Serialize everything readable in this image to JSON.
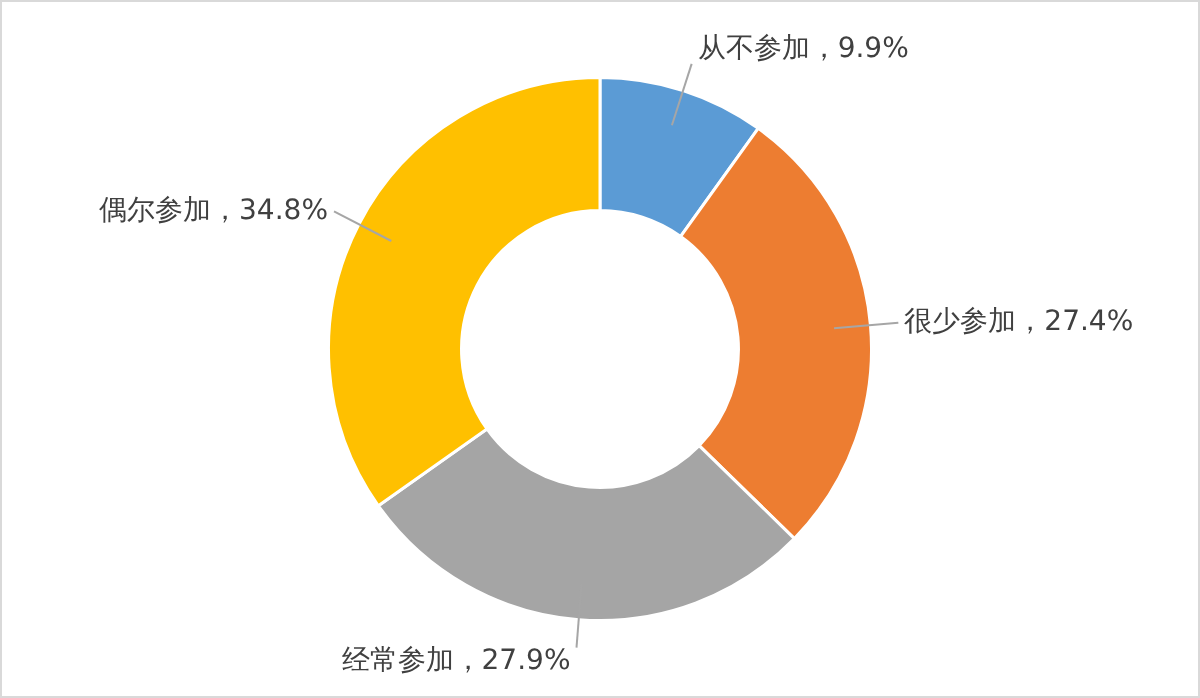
{
  "chart_data": {
    "type": "donut",
    "categories": [
      "从不参加",
      "很少参加",
      "经常参加",
      "偶尔参加"
    ],
    "values": [
      9.9,
      27.4,
      27.9,
      34.8
    ],
    "colors": [
      "#5b9bd5",
      "#ed7d31",
      "#a5a5a5",
      "#ffc000"
    ],
    "value_labels": [
      "，9.9%",
      "，27.4%",
      "，27.9%",
      "，34.8%"
    ],
    "legend": false
  }
}
